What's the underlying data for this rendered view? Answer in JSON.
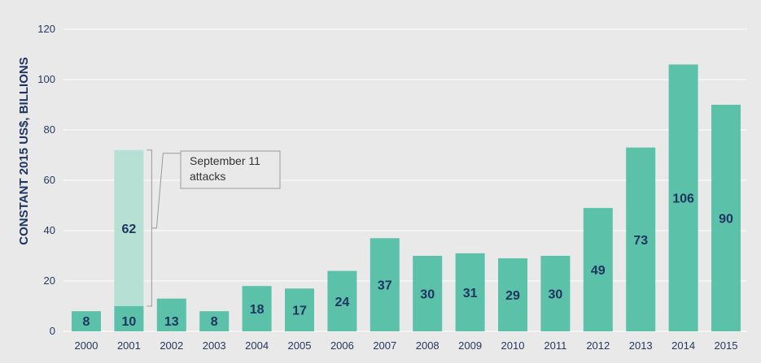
{
  "chart_data": {
    "type": "bar",
    "stacked": true,
    "title": "",
    "xlabel": "",
    "ylabel": "CONSTANT 2015 US$, BILLIONS",
    "ylim": [
      0,
      120
    ],
    "yticks": [
      "0",
      "20",
      "40",
      "60",
      "80",
      "100",
      "120"
    ],
    "grid": true,
    "categories": [
      "2000",
      "2001",
      "2002",
      "2003",
      "2004",
      "2005",
      "2006",
      "2007",
      "2008",
      "2009",
      "2010",
      "2011",
      "2012",
      "2013",
      "2014",
      "2015"
    ],
    "series": [
      {
        "values": [
          8,
          10,
          13,
          8,
          18,
          17,
          24,
          37,
          30,
          31,
          29,
          30,
          49,
          73,
          106,
          90
        ]
      },
      {
        "values": [
          0,
          62,
          0,
          0,
          0,
          0,
          0,
          0,
          0,
          0,
          0,
          0,
          0,
          0,
          0,
          0
        ]
      }
    ],
    "data_labels": [
      [
        "8",
        "10",
        "13",
        "8",
        "18",
        "17",
        "24",
        "37",
        "30",
        "31",
        "29",
        "30",
        "49",
        "73",
        "106",
        "90"
      ],
      [
        "",
        "62",
        "",
        "",
        "",
        "",
        "",
        "",
        "",
        "",
        "",
        "",
        "",
        "",
        "",
        ""
      ]
    ],
    "annotation": {
      "text": [
        "September 11",
        "attacks"
      ],
      "category": "2001"
    },
    "colors": {
      "main": "#5cc1a9",
      "extra": "#b5e0d3",
      "label": "#1f3560",
      "axis": "#26385c",
      "grid": "#ffffff",
      "background": "#e9e9e9"
    }
  }
}
